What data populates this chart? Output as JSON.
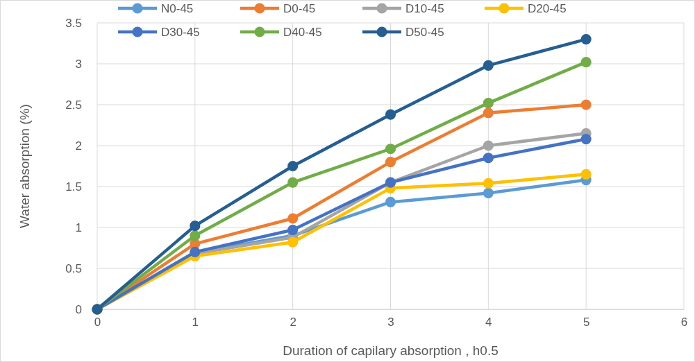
{
  "chart_data": {
    "type": "line",
    "xlabel": "Duration of capilary absorption , h0.5",
    "ylabel": "Water absorption (%)",
    "x": [
      0,
      1,
      2,
      3,
      4,
      5
    ],
    "xlim": [
      0,
      6
    ],
    "xticks": [
      0,
      1,
      2,
      3,
      4,
      5,
      6
    ],
    "ylim": [
      0,
      3.5
    ],
    "yticks": [
      0,
      0.5,
      1,
      1.5,
      2,
      2.5,
      3,
      3.5
    ],
    "grid": true,
    "legend": "top",
    "marker": "circle",
    "line_style": "solid",
    "series": [
      {
        "name": "N0-45",
        "color": "#5b9bd5",
        "values": [
          0,
          0.69,
          0.9,
          1.31,
          1.42,
          1.58
        ]
      },
      {
        "name": "D0-45",
        "color": "#ed7d31",
        "values": [
          0,
          0.8,
          1.11,
          1.8,
          2.4,
          2.5
        ]
      },
      {
        "name": "D10-45",
        "color": "#a5a5a5",
        "values": [
          0,
          0.68,
          0.88,
          1.55,
          2.0,
          2.15
        ]
      },
      {
        "name": "D20-45",
        "color": "#ffc000",
        "values": [
          0,
          0.65,
          0.82,
          1.48,
          1.54,
          1.65
        ]
      },
      {
        "name": "D30-45",
        "color": "#4472c4",
        "values": [
          0,
          0.7,
          0.97,
          1.55,
          1.85,
          2.08
        ]
      },
      {
        "name": "D40-45",
        "color": "#70ad47",
        "values": [
          0,
          0.9,
          1.55,
          1.96,
          2.52,
          3.02
        ]
      },
      {
        "name": "D50-45",
        "color": "#255e91",
        "values": [
          0,
          1.02,
          1.75,
          2.38,
          2.98,
          3.3
        ]
      }
    ]
  }
}
